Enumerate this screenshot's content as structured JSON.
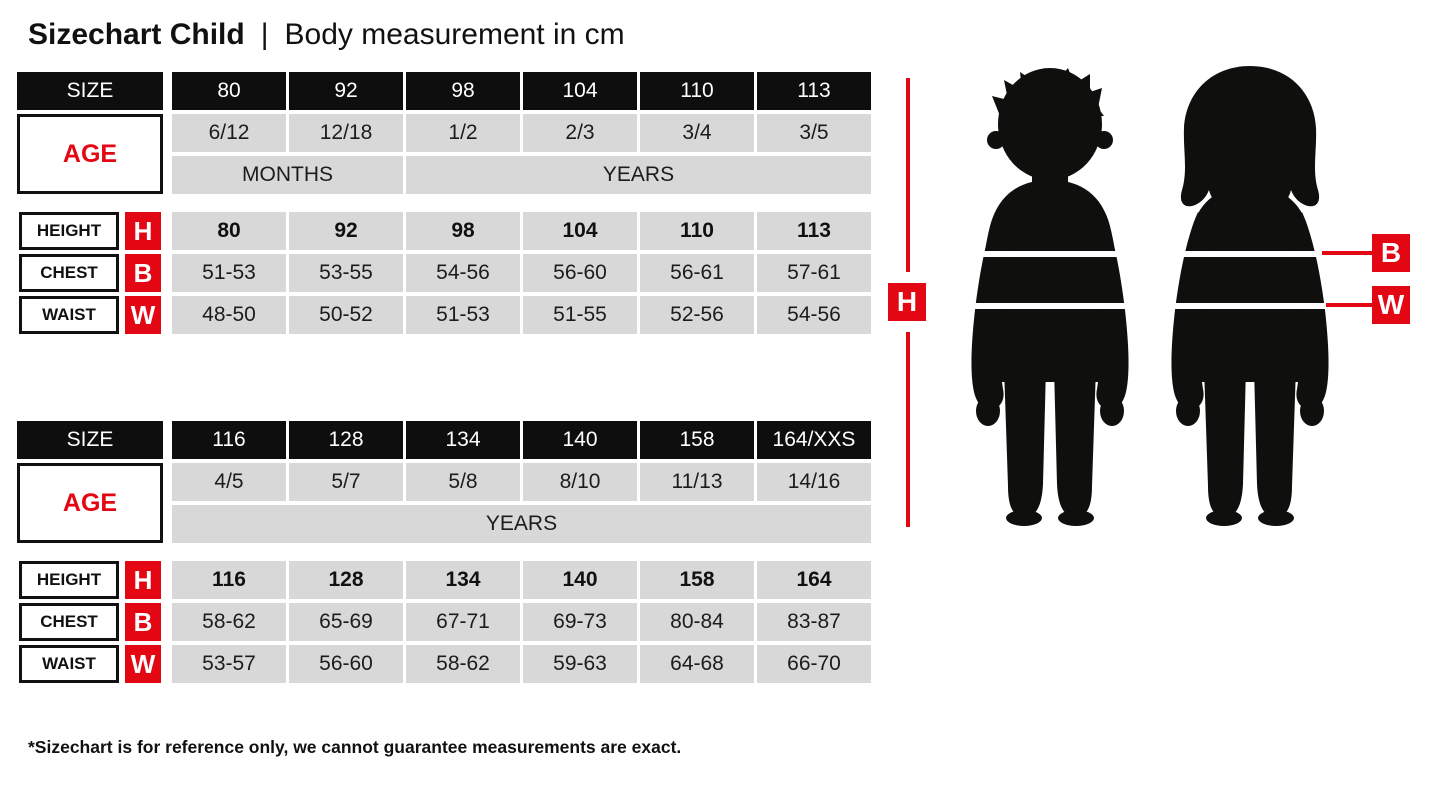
{
  "colors": {
    "red": "#e30613",
    "black": "#0e0e0e",
    "cell_gray": "#d8d8d8"
  },
  "header": {
    "title_bold": "Sizechart Child",
    "separator": "|",
    "title_rest": "Body measurement in cm"
  },
  "tables": [
    {
      "size_label": "SIZE",
      "age_label": "AGE",
      "sizes": [
        "80",
        "92",
        "98",
        "104",
        "110",
        "113"
      ],
      "ages": [
        "6/12",
        "12/18",
        "1/2",
        "2/3",
        "3/4",
        "3/5"
      ],
      "period_spans": [
        {
          "label": "MONTHS",
          "cols": 2
        },
        {
          "label": "YEARS",
          "cols": 4
        }
      ],
      "rows": [
        {
          "label": "HEIGHT",
          "letter": "H",
          "bold": true,
          "values": [
            "80",
            "92",
            "98",
            "104",
            "110",
            "113"
          ]
        },
        {
          "label": "CHEST",
          "letter": "B",
          "bold": false,
          "values": [
            "51-53",
            "53-55",
            "54-56",
            "56-60",
            "56-61",
            "57-61"
          ]
        },
        {
          "label": "WAIST",
          "letter": "W",
          "bold": false,
          "values": [
            "48-50",
            "50-52",
            "51-53",
            "51-55",
            "52-56",
            "54-56"
          ]
        }
      ]
    },
    {
      "size_label": "SIZE",
      "age_label": "AGE",
      "sizes": [
        "116",
        "128",
        "134",
        "140",
        "158",
        "164/XXS"
      ],
      "ages": [
        "4/5",
        "5/7",
        "5/8",
        "8/10",
        "11/13",
        "14/16"
      ],
      "period_spans": [
        {
          "label": "YEARS",
          "cols": 6
        }
      ],
      "rows": [
        {
          "label": "HEIGHT",
          "letter": "H",
          "bold": true,
          "values": [
            "116",
            "128",
            "134",
            "140",
            "158",
            "164"
          ]
        },
        {
          "label": "CHEST",
          "letter": "B",
          "bold": false,
          "values": [
            "58-62",
            "65-69",
            "67-71",
            "69-73",
            "80-84",
            "83-87"
          ]
        },
        {
          "label": "WAIST",
          "letter": "W",
          "bold": false,
          "values": [
            "53-57",
            "56-60",
            "58-62",
            "59-63",
            "64-68",
            "66-70"
          ]
        }
      ]
    }
  ],
  "figure": {
    "height_letter": "H",
    "chest_letter": "B",
    "waist_letter": "W"
  },
  "footnote": "*Sizechart is for reference only, we cannot guarantee measurements are exact."
}
